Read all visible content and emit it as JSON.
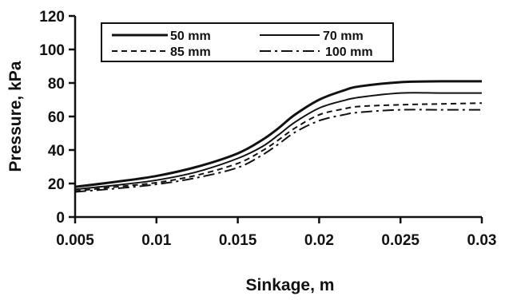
{
  "chart_data": {
    "type": "line",
    "title": "",
    "xlabel": "Sinkage, m",
    "ylabel": "Pressure, kPa",
    "xlim": [
      0.005,
      0.03
    ],
    "ylim": [
      0,
      120
    ],
    "xticks": [
      "0.005",
      "0.01",
      "0.015",
      "0.02",
      "0.025",
      "0.03"
    ],
    "yticks": [
      "0",
      "20",
      "40",
      "60",
      "80",
      "100",
      "120"
    ],
    "grid": false,
    "legend_position": "top-left",
    "x": [
      0.005,
      0.0075,
      0.01,
      0.0125,
      0.015,
      0.0165,
      0.0175,
      0.0185,
      0.02,
      0.0215,
      0.0225,
      0.025,
      0.0275,
      0.03
    ],
    "series": [
      {
        "name": "50 mm",
        "style": "solid",
        "width": 3.0,
        "values": [
          18,
          21,
          24.5,
          30,
          38,
          46,
          53,
          61,
          70,
          75.5,
          78,
          80.5,
          81,
          81
        ]
      },
      {
        "name": "70 mm",
        "style": "solid",
        "width": 2.0,
        "values": [
          16.5,
          19,
          22,
          27,
          35,
          42,
          49,
          56.5,
          65,
          69.5,
          71.5,
          74,
          74,
          74
        ]
      },
      {
        "name": "85 mm",
        "style": "dashed",
        "width": 2.0,
        "values": [
          15.5,
          18,
          20.5,
          25,
          32,
          39.5,
          46,
          53,
          61,
          64.5,
          66,
          67,
          67.5,
          68
        ]
      },
      {
        "name": "100 mm",
        "style": "dash-dot",
        "width": 2.0,
        "values": [
          15,
          17,
          19.5,
          23.5,
          29.5,
          37,
          43.5,
          50.5,
          57.5,
          61,
          62.5,
          64,
          64,
          64
        ]
      }
    ]
  }
}
